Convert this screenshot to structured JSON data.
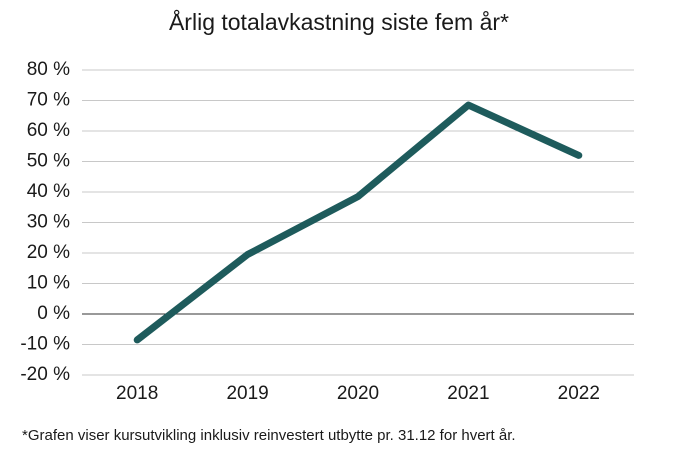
{
  "chart_data": {
    "type": "line",
    "title": "Årlig totalavkastning siste fem år*",
    "footnote": "*Grafen viser kursutvikling inklusiv reinvestert utbytte pr. 31.12 for hvert år.",
    "categories": [
      "2018",
      "2019",
      "2020",
      "2021",
      "2022"
    ],
    "values": [
      -8.5,
      19.5,
      38.5,
      68.5,
      52
    ],
    "color": "#1e5b5c",
    "ylim": [
      -20,
      80
    ],
    "yticks": [
      {
        "value": -20,
        "label": "-20 %"
      },
      {
        "value": -10,
        "label": "-10 %"
      },
      {
        "value": 0,
        "label": "0 %"
      },
      {
        "value": 10,
        "label": "10 %"
      },
      {
        "value": 20,
        "label": "20 %"
      },
      {
        "value": 30,
        "label": "30 %"
      },
      {
        "value": 40,
        "label": "40 %"
      },
      {
        "value": 50,
        "label": "50 %"
      },
      {
        "value": 60,
        "label": "60 %"
      },
      {
        "value": 70,
        "label": "70 %"
      },
      {
        "value": 80,
        "label": "80 %"
      }
    ],
    "grid": true
  }
}
